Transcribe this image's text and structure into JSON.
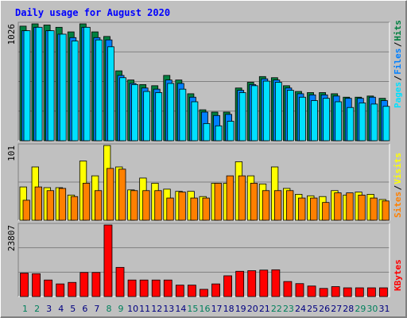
{
  "title": "Daily usage for August 2020",
  "colors": {
    "background": "#c0c0c0",
    "title": "#0000ff",
    "hits": "#008040",
    "files": "#0080ff",
    "pages": "#00e0ff",
    "visits": "#ffff00",
    "sites": "#ff8000",
    "kbytes": "#ff0000",
    "weekend_label": "#00805c",
    "weekday_label": "#000080"
  },
  "chart_data": [
    {
      "type": "bar",
      "panel": "top",
      "ymax_label": "1026",
      "legend": [
        "Hits",
        "Files",
        "Pages"
      ],
      "legend_placement": "right",
      "grid": true,
      "categories": [
        "1",
        "2",
        "3",
        "4",
        "5",
        "6",
        "7",
        "8",
        "9",
        "10",
        "11",
        "12",
        "13",
        "14",
        "15",
        "16",
        "17",
        "18",
        "19",
        "20",
        "21",
        "22",
        "23",
        "24",
        "25",
        "26",
        "27",
        "28",
        "29",
        "30",
        "31"
      ],
      "weekend_days": [
        "1",
        "2",
        "8",
        "9",
        "15",
        "16",
        "22",
        "23",
        "29",
        "30"
      ],
      "series": [
        {
          "name": "Hits",
          "values": [
            1000,
            1020,
            1010,
            990,
            950,
            1020,
            950,
            910,
            610,
            530,
            490,
            480,
            570,
            530,
            410,
            270,
            250,
            250,
            460,
            510,
            560,
            550,
            480,
            430,
            420,
            420,
            410,
            380,
            380,
            390,
            370
          ]
        },
        {
          "name": "Files",
          "values": [
            960,
            990,
            960,
            930,
            900,
            990,
            900,
            880,
            570,
            500,
            460,
            450,
            530,
            500,
            380,
            250,
            220,
            230,
            440,
            490,
            540,
            530,
            460,
            410,
            400,
            400,
            390,
            370,
            370,
            380,
            350
          ]
        },
        {
          "name": "Pages",
          "values": [
            960,
            990,
            960,
            930,
            870,
            990,
            880,
            820,
            550,
            490,
            430,
            420,
            500,
            450,
            340,
            150,
            130,
            170,
            420,
            480,
            520,
            510,
            440,
            380,
            350,
            370,
            340,
            290,
            330,
            320,
            300
          ]
        }
      ]
    },
    {
      "type": "bar",
      "panel": "middle",
      "ymax_label": "101",
      "legend": [
        "Visits",
        "Sites"
      ],
      "legend_placement": "right",
      "grid": true,
      "series": [
        {
          "name": "Visits",
          "values": [
            45,
            72,
            44,
            44,
            34,
            80,
            60,
            101,
            72,
            41,
            57,
            50,
            42,
            39,
            39,
            32,
            50,
            50,
            79,
            60,
            49,
            72,
            43,
            35,
            33,
            32,
            40,
            34,
            38,
            35,
            28
          ]
        },
        {
          "name": "Sites",
          "values": [
            27,
            45,
            40,
            43,
            32,
            50,
            40,
            70,
            69,
            40,
            40,
            40,
            30,
            38,
            30,
            30,
            50,
            60,
            60,
            50,
            40,
            40,
            40,
            30,
            30,
            24,
            37,
            37,
            34,
            30,
            26
          ]
        }
      ]
    },
    {
      "type": "bar",
      "panel": "bottom",
      "ymax_label": "23807",
      "legend": [
        "KBytes"
      ],
      "legend_placement": "right",
      "grid": true,
      "series": [
        {
          "name": "KBytes",
          "values": [
            7800,
            7600,
            5500,
            4200,
            4700,
            8000,
            8000,
            23807,
            9700,
            5500,
            5500,
            5500,
            5500,
            3800,
            3800,
            2400,
            4200,
            6900,
            8400,
            8600,
            8800,
            8900,
            5000,
            4300,
            3500,
            2700,
            3300,
            2900,
            2900,
            2900,
            2900
          ]
        }
      ]
    }
  ]
}
